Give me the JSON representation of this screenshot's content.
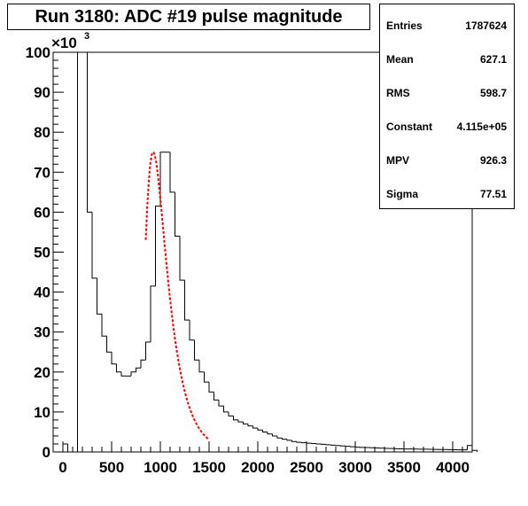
{
  "chart_data": {
    "type": "bar",
    "title": "Run 3180: ADC #19 pulse magnitude",
    "xlabel": "",
    "ylabel": "",
    "xlim": [
      -100,
      4200
    ],
    "ylim": [
      0,
      100000
    ],
    "y_exponent_label": "×10",
    "y_exponent": "3",
    "x_ticks": [
      0,
      500,
      1000,
      1500,
      2000,
      2500,
      3000,
      3500,
      4000
    ],
    "x_tick_labels": [
      "0",
      "500",
      "1000",
      "1500",
      "2000",
      "2500",
      "3000",
      "3500",
      "4000"
    ],
    "y_ticks": [
      0,
      10000,
      20000,
      30000,
      40000,
      50000,
      60000,
      70000,
      80000,
      90000,
      100000
    ],
    "y_tick_labels": [
      "0",
      "10",
      "20",
      "30",
      "40",
      "50",
      "60",
      "70",
      "80",
      "90",
      "100"
    ],
    "bin_width": 50,
    "bin_edges_start": 0,
    "histogram_counts": [
      2000,
      0,
      0,
      100000,
      100000,
      60000,
      43500,
      34500,
      29000,
      25000,
      22000,
      20000,
      19000,
      19000,
      20000,
      21000,
      23000,
      27500,
      41500,
      61500,
      75000,
      75000,
      65000,
      54000,
      43000,
      33000,
      28000,
      23000,
      20000,
      17500,
      15000,
      13000,
      11500,
      10000,
      9000,
      8000,
      7500,
      7000,
      6500,
      6000,
      5500,
      5000,
      4500,
      4000,
      3500,
      3200,
      2900,
      2600,
      2400,
      2300,
      2200,
      2100,
      2000,
      1900,
      1800,
      1700,
      1600,
      1500,
      1400,
      1300,
      1200,
      1150,
      1100,
      1050,
      1000,
      950,
      900,
      850,
      800,
      780,
      760,
      740,
      720,
      700,
      680,
      660,
      640,
      620,
      600,
      580,
      560,
      540,
      520,
      1600,
      400
    ],
    "fit": {
      "function": "landau",
      "constant": 411500,
      "mpv": 926.3,
      "sigma": 77.51,
      "x_range": [
        850,
        1500
      ],
      "color": "#ff0000"
    },
    "colors": {
      "histogram": "#000000",
      "fit": "#ff0000",
      "background": "#ffffff"
    }
  },
  "stats": [
    {
      "label": "Entries",
      "value": "1787624"
    },
    {
      "label": "Mean",
      "value": "627.1"
    },
    {
      "label": "RMS",
      "value": "598.7"
    },
    {
      "label": "Constant",
      "value": "4.115e+05"
    },
    {
      "label": "MPV",
      "value": "926.3"
    },
    {
      "label": "Sigma",
      "value": "77.51"
    }
  ]
}
